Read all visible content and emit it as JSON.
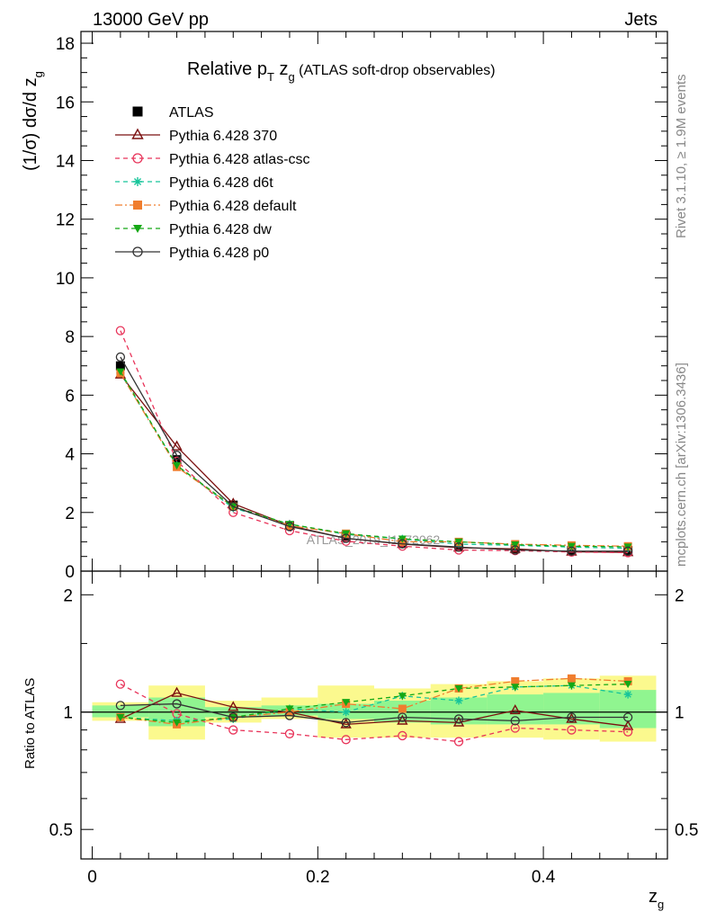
{
  "header": {
    "left": "13000 GeV pp",
    "right": "Jets"
  },
  "side_text": {
    "top": "Rivet 3.1.10, ≥ 1.9M events",
    "bottom": "mcplots.cern.ch [arXiv:1306.3436]"
  },
  "watermark": "ATLAS_2019_I1772062",
  "chart_data": [
    {
      "type": "line",
      "title_main": "Relative p",
      "title_sub_T": "T",
      "title_z": " z",
      "title_sub_g": "g",
      "title_rest": " (ATLAS soft-drop observables)",
      "ylabel": "(1/σ) dσ/d z",
      "ylabel_sub": "g",
      "xlim": [
        -0.01,
        0.51
      ],
      "ylim": [
        0,
        18.4
      ],
      "yticks": [
        "0",
        "2",
        "4",
        "6",
        "8",
        "10",
        "12",
        "14",
        "16",
        "18"
      ],
      "x": [
        0.025,
        0.075,
        0.125,
        0.175,
        0.225,
        0.275,
        0.325,
        0.375,
        0.425,
        0.475
      ],
      "series": [
        {
          "name": "ATLAS",
          "color": "#000000",
          "marker": "square-filled",
          "style": "none",
          "values": [
            7.0,
            3.8,
            2.25,
            1.55,
            1.2,
            0.97,
            0.85,
            0.76,
            0.7,
            0.7
          ]
        },
        {
          "name": "Pythia 6.428 370",
          "color": "#7b1010",
          "marker": "triangle-open",
          "style": "solid",
          "values": [
            6.7,
            4.25,
            2.3,
            1.55,
            1.12,
            0.92,
            0.8,
            0.76,
            0.66,
            0.64
          ]
        },
        {
          "name": "Pythia 6.428 atlas-csc",
          "color": "#e8345a",
          "marker": "circle-open",
          "style": "dashed",
          "values": [
            8.2,
            3.75,
            2.0,
            1.38,
            1.02,
            0.85,
            0.72,
            0.7,
            0.65,
            0.63
          ]
        },
        {
          "name": "Pythia 6.428 d6t",
          "color": "#16c49a",
          "marker": "star",
          "style": "dashed",
          "values": [
            6.75,
            3.6,
            2.15,
            1.6,
            1.25,
            1.1,
            0.92,
            0.88,
            0.82,
            0.78
          ]
        },
        {
          "name": "Pythia 6.428 default",
          "color": "#f07d2e",
          "marker": "square-filled",
          "style": "dashdot",
          "values": [
            6.75,
            3.55,
            2.2,
            1.55,
            1.28,
            1.0,
            1.0,
            0.92,
            0.88,
            0.85
          ]
        },
        {
          "name": "Pythia 6.428 dw",
          "color": "#15a815",
          "marker": "triangle-down-filled",
          "style": "dashed",
          "values": [
            6.8,
            3.6,
            2.2,
            1.6,
            1.28,
            1.1,
            1.0,
            0.9,
            0.85,
            0.83
          ]
        },
        {
          "name": "Pythia 6.428 p0",
          "color": "#333333",
          "marker": "circle-open",
          "style": "solid",
          "values": [
            7.3,
            3.95,
            2.2,
            1.52,
            1.12,
            0.93,
            0.82,
            0.72,
            0.68,
            0.68
          ]
        }
      ]
    },
    {
      "type": "line",
      "ylabel": "Ratio to ATLAS",
      "xlabel": "z",
      "xlabel_sub": "g",
      "xticks": [
        "0",
        "0.2",
        "0.4"
      ],
      "yticks_right": [
        "0.5",
        "1",
        "2"
      ],
      "ylim": [
        0.42,
        2.3
      ],
      "log_y": true,
      "band_green": [
        [
          0.97,
          1.04
        ],
        [
          0.92,
          1.09
        ],
        [
          0.97,
          1.03
        ],
        [
          0.98,
          1.04
        ],
        [
          0.96,
          1.05
        ],
        [
          0.94,
          1.07
        ],
        [
          0.93,
          1.09
        ],
        [
          0.93,
          1.11
        ],
        [
          0.93,
          1.12
        ],
        [
          0.91,
          1.14
        ]
      ],
      "band_yellow": [
        [
          0.95,
          1.06
        ],
        [
          0.85,
          1.17
        ],
        [
          0.94,
          1.07
        ],
        [
          0.96,
          1.09
        ],
        [
          0.86,
          1.17
        ],
        [
          0.86,
          1.15
        ],
        [
          0.86,
          1.18
        ],
        [
          0.86,
          1.2
        ],
        [
          0.85,
          1.22
        ],
        [
          0.84,
          1.24
        ]
      ],
      "series": [
        {
          "name": "Pythia 6.428 370",
          "values": [
            0.96,
            1.12,
            1.03,
            1.0,
            0.93,
            0.95,
            0.94,
            1.01,
            0.96,
            0.92
          ]
        },
        {
          "name": "Pythia 6.428 atlas-csc",
          "values": [
            1.18,
            0.99,
            0.9,
            0.88,
            0.85,
            0.87,
            0.84,
            0.91,
            0.9,
            0.89
          ]
        },
        {
          "name": "Pythia 6.428 d6t",
          "values": [
            0.97,
            0.95,
            0.96,
            1.02,
            1.0,
            1.1,
            1.07,
            1.16,
            1.17,
            1.11
          ]
        },
        {
          "name": "Pythia 6.428 default",
          "values": [
            0.97,
            0.93,
            0.97,
            1.0,
            1.05,
            1.02,
            1.15,
            1.2,
            1.22,
            1.2
          ]
        },
        {
          "name": "Pythia 6.428 dw",
          "values": [
            0.97,
            0.94,
            0.97,
            1.02,
            1.06,
            1.1,
            1.15,
            1.16,
            1.17,
            1.18
          ]
        },
        {
          "name": "Pythia 6.428 p0",
          "values": [
            1.04,
            1.05,
            0.97,
            0.98,
            0.94,
            0.97,
            0.96,
            0.95,
            0.97,
            0.97
          ]
        }
      ]
    }
  ]
}
